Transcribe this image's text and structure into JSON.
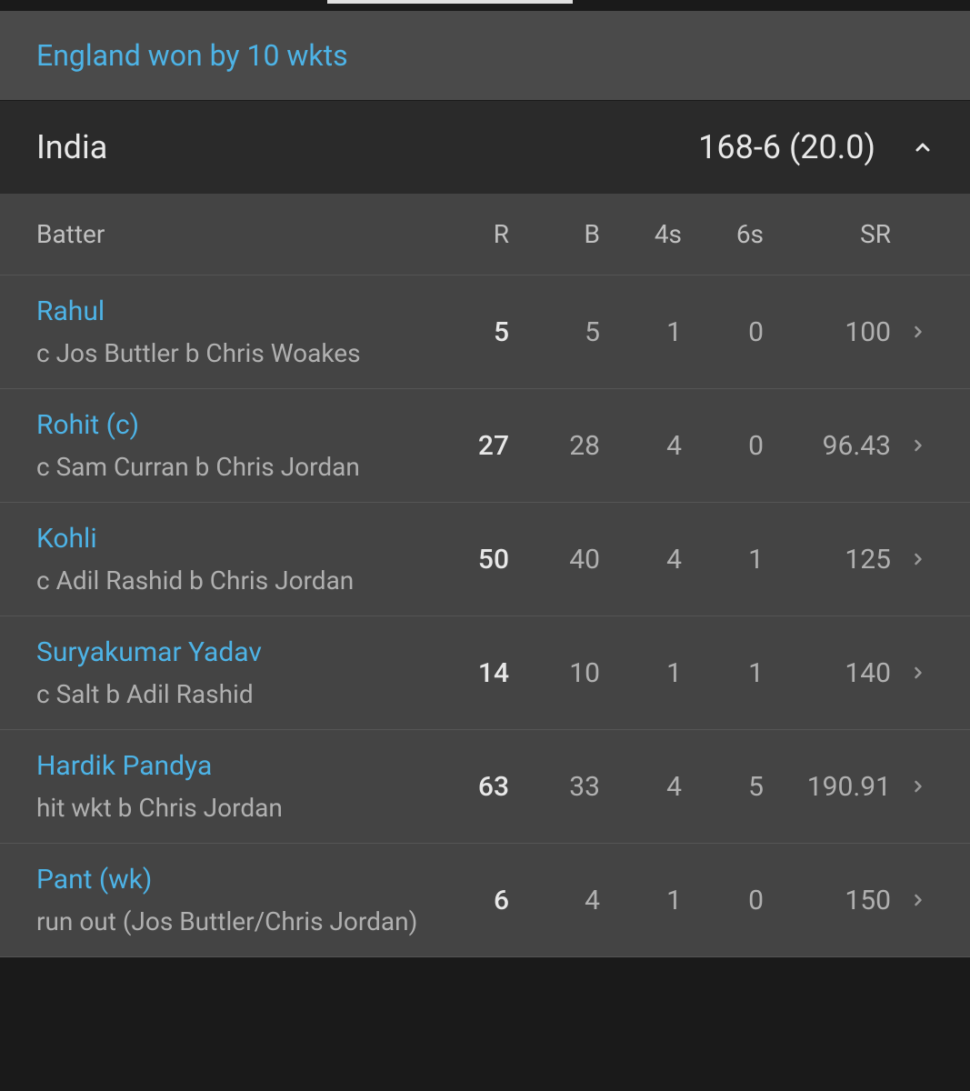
{
  "colors": {
    "link": "#4db3e6"
  },
  "result": "England won by 10 wkts",
  "team": {
    "name": "India",
    "score": "168-6 (20.0)"
  },
  "columns": {
    "batter": "Batter",
    "r": "R",
    "b": "B",
    "fours": "4s",
    "sixes": "6s",
    "sr": "SR"
  },
  "rows": [
    {
      "name": "Rahul",
      "dismissal": "c Jos Buttler b Chris Woakes",
      "r": "5",
      "b": "5",
      "fours": "1",
      "sixes": "0",
      "sr": "100"
    },
    {
      "name": "Rohit (c)",
      "dismissal": "c Sam Curran b Chris Jordan",
      "r": "27",
      "b": "28",
      "fours": "4",
      "sixes": "0",
      "sr": "96.43"
    },
    {
      "name": "Kohli",
      "dismissal": "c Adil Rashid b Chris Jordan",
      "r": "50",
      "b": "40",
      "fours": "4",
      "sixes": "1",
      "sr": "125"
    },
    {
      "name": "Suryakumar Yadav",
      "dismissal": "c Salt b Adil Rashid",
      "r": "14",
      "b": "10",
      "fours": "1",
      "sixes": "1",
      "sr": "140"
    },
    {
      "name": "Hardik Pandya",
      "dismissal": "hit wkt b Chris Jordan",
      "r": "63",
      "b": "33",
      "fours": "4",
      "sixes": "5",
      "sr": "190.91"
    },
    {
      "name": "Pant (wk)",
      "dismissal": "run out (Jos Buttler/Chris Jordan)",
      "r": "6",
      "b": "4",
      "fours": "1",
      "sixes": "0",
      "sr": "150"
    }
  ]
}
